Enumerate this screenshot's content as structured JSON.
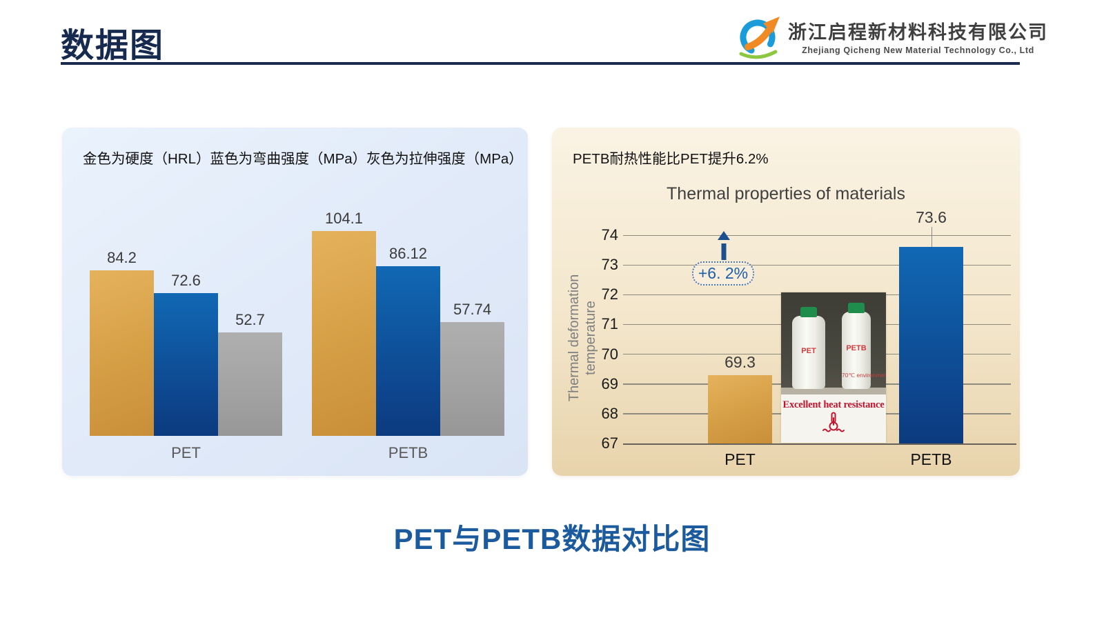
{
  "header": {
    "title": "数据图",
    "logo": {
      "company_cn": "浙江启程新材料科技有限公司",
      "company_en": "Zhejiang Qicheng New Material Technology Co., Ltd"
    }
  },
  "left_panel": {
    "legend": "金色为硬度（HRL）蓝色为弯曲强度（MPa）灰色为拉伸强度（MPa）"
  },
  "right_panel": {
    "subtitle": "PETB耐热性能比PET提升6.2%",
    "annotation": "+6. 2%",
    "inset": {
      "bottle_left_label": "PET",
      "bottle_right_label": "PETB",
      "environment_note": "70℃ environment",
      "caption": "Excellent heat resistance"
    }
  },
  "footer": {
    "caption": "PET与PETB数据对比图"
  },
  "colors": {
    "gold": "#D6A047",
    "blue": "#0E4E97",
    "gray": "#A3A3A3",
    "navy": "#1A2B4D",
    "caption_blue": "#1B5A9C",
    "annotation_blue": "#1D5FA8",
    "red": "#C0152E"
  },
  "chart_data": [
    {
      "type": "bar",
      "title": "",
      "categories": [
        "PET",
        "PETB"
      ],
      "series": [
        {
          "name": "硬度（HRL）",
          "color_key": "gold",
          "values": [
            84.2,
            104.1
          ]
        },
        {
          "name": "弯曲强度（MPa）",
          "color_key": "blue",
          "values": [
            72.6,
            86.12
          ]
        },
        {
          "name": "拉伸强度（MPa）",
          "color_key": "gray",
          "values": [
            52.7,
            57.74
          ]
        }
      ],
      "value_labels": [
        [
          "84.2",
          "72.6",
          "52.7"
        ],
        [
          "104.1",
          "86.12",
          "57.74"
        ]
      ],
      "ylim": [
        0,
        110
      ],
      "grid": false,
      "legend_position": "top-text"
    },
    {
      "type": "bar",
      "title": "Thermal properties of materials",
      "ylabel": "Thermal deformation temperature",
      "categories": [
        "PET",
        "PETB"
      ],
      "values": [
        69.3,
        73.6
      ],
      "value_labels": [
        "69.3",
        "73.6"
      ],
      "bar_colors": [
        "gold",
        "blue"
      ],
      "ylim": [
        67,
        74
      ],
      "yticks": [
        67,
        68,
        69,
        70,
        71,
        72,
        73,
        74
      ],
      "grid": true,
      "annotation": "+6. 2%"
    }
  ]
}
